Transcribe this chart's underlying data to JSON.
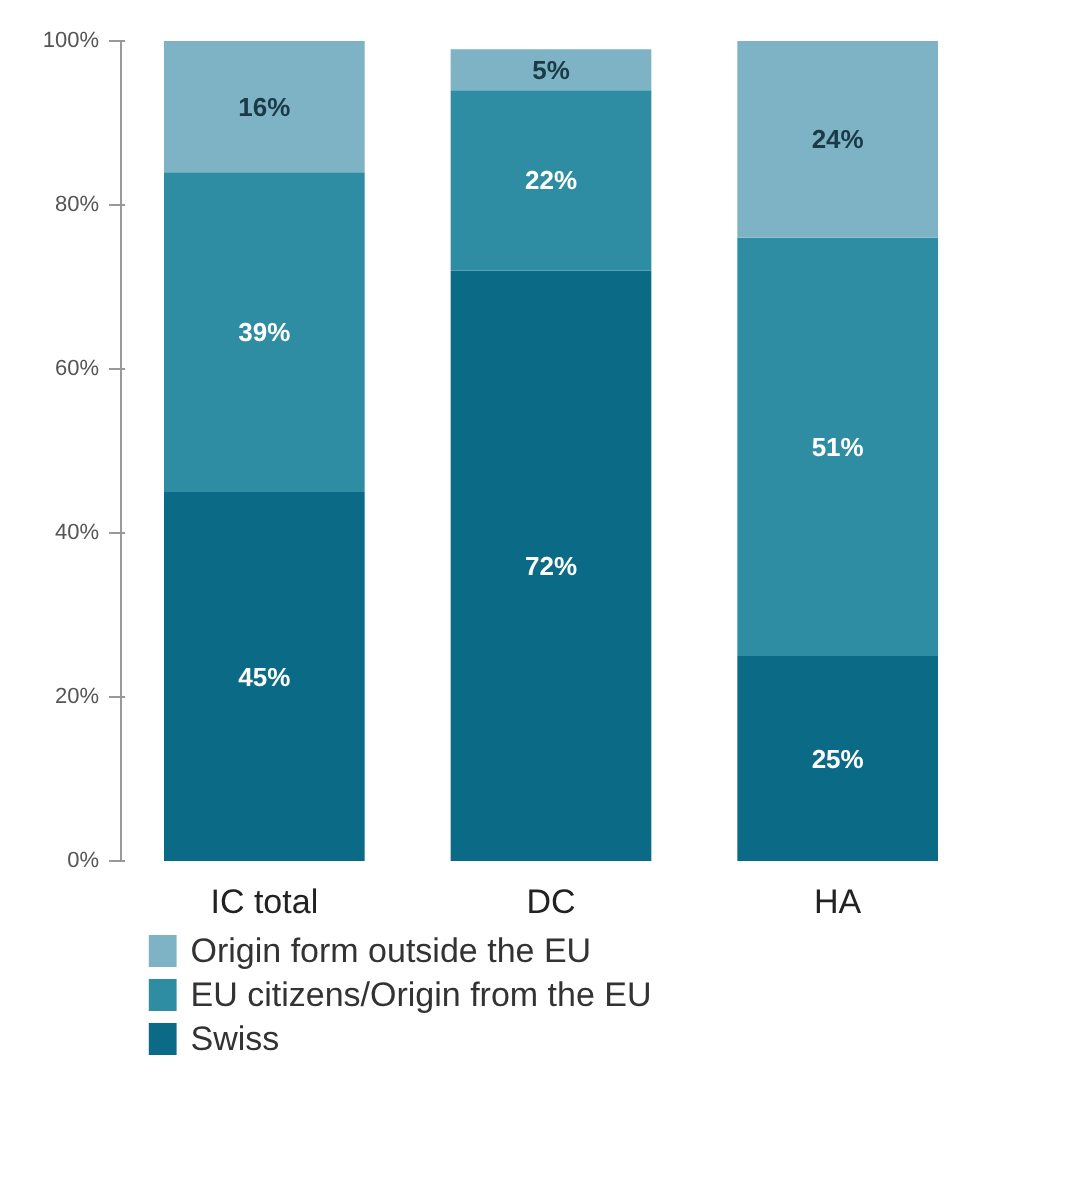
{
  "chart_data": {
    "type": "bar",
    "stacked": true,
    "categories": [
      "IC total",
      "DC",
      "HA"
    ],
    "series": [
      {
        "name": "Swiss",
        "color": "#0b6a85",
        "values": [
          45,
          72,
          25
        ],
        "value_labels": [
          "45%",
          "72%",
          "25%"
        ]
      },
      {
        "name": "EU citizens/Origin from the EU",
        "color": "#2e8ca3",
        "values": [
          39,
          22,
          51
        ],
        "value_labels": [
          "39%",
          "22%",
          "51%"
        ]
      },
      {
        "name": "Origin form outside the EU",
        "color": "#7db3c5",
        "values": [
          16,
          5,
          24
        ],
        "value_labels": [
          "16%",
          "5%",
          "24%"
        ]
      }
    ],
    "ylim": [
      0,
      100
    ],
    "yticks": [
      {
        "value": 0,
        "label": "0%"
      },
      {
        "value": 20,
        "label": "20%"
      },
      {
        "value": 40,
        "label": "40%"
      },
      {
        "value": 60,
        "label": "60%"
      },
      {
        "value": 80,
        "label": "80%"
      },
      {
        "value": 100,
        "label": "100%"
      }
    ],
    "grid": false,
    "legend": "bottom"
  }
}
